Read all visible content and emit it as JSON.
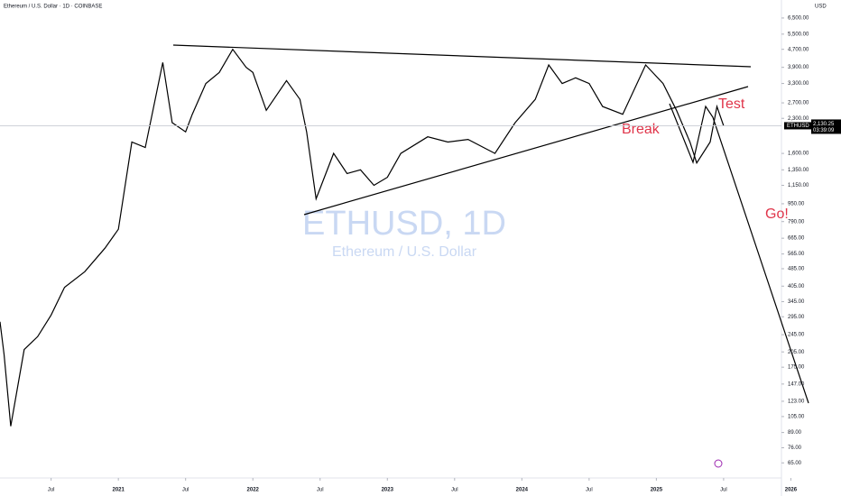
{
  "chart_data": {
    "type": "line",
    "header": "Ethereum / U.S. Dollar · 1D · COINBASE",
    "currency": "USD",
    "watermark": "ETHUSD, 1D",
    "watermark_subtitle": "Ethereum / U.S. Dollar",
    "symbol": "ETHUSD",
    "last_price": {
      "value": 2130.25,
      "label": "2,130.25"
    },
    "countdown": "03:39:09",
    "annotations": [
      "Break",
      "Test",
      "Go!"
    ],
    "log_scale": true,
    "color": "#000000",
    "x": [
      2020.12,
      2020.15,
      2020.2,
      2020.3,
      2020.4,
      2020.5,
      2020.6,
      2020.75,
      2020.9,
      2021.0,
      2021.1,
      2021.2,
      2021.33,
      2021.4,
      2021.5,
      2021.55,
      2021.65,
      2021.75,
      2021.85,
      2021.95,
      2022.0,
      2022.1,
      2022.25,
      2022.35,
      2022.4,
      2022.47,
      2022.6,
      2022.7,
      2022.8,
      2022.9,
      2023.0,
      2023.1,
      2023.3,
      2023.45,
      2023.6,
      2023.8,
      2023.95,
      2024.1,
      2024.2,
      2024.3,
      2024.4,
      2024.5,
      2024.6,
      2024.75,
      2024.92,
      2025.05,
      2025.15,
      2025.25,
      2025.3,
      2025.4,
      2025.45,
      2025.5
    ],
    "values": [
      280,
      200,
      95,
      210,
      240,
      300,
      400,
      470,
      600,
      730,
      1800,
      1700,
      4100,
      2200,
      2000,
      2400,
      3300,
      3700,
      4700,
      3900,
      3700,
      2500,
      3400,
      2800,
      2000,
      1000,
      1600,
      1300,
      1350,
      1150,
      1250,
      1600,
      1900,
      1800,
      1850,
      1600,
      2200,
      2800,
      4000,
      3300,
      3500,
      3300,
      2600,
      2400,
      4000,
      3300,
      2500,
      1800,
      1450,
      1800,
      2600,
      2130
    ],
    "xlim": [
      2020.12,
      2025.93
    ],
    "xticks": [
      {
        "value": 2020.5,
        "label": "Jul"
      },
      2021,
      {
        "value": 2021.5,
        "label": "Jul"
      },
      2022,
      {
        "value": 2022.5,
        "label": "Jul"
      },
      2023,
      {
        "value": 2023.5,
        "label": "Jul"
      },
      2024,
      {
        "value": 2024.5,
        "label": "Jul"
      },
      2025,
      {
        "value": 2025.5,
        "label": "Jul"
      },
      2026
    ],
    "ylim": [
      55.6,
      7830
    ],
    "yticks": [
      {
        "value": 6500,
        "label": "6,500.00"
      },
      {
        "value": 5500,
        "label": "5,500.00"
      },
      {
        "value": 4700,
        "label": "4,700.00"
      },
      {
        "value": 3900,
        "label": "3,900.00"
      },
      {
        "value": 3300,
        "label": "3,300.00"
      },
      {
        "value": 2700,
        "label": "2,700.00"
      },
      {
        "value": 2300,
        "label": "2,300.00"
      },
      {
        "value": 1600,
        "label": "1,600.00"
      },
      {
        "value": 1350,
        "label": "1,350.00"
      },
      {
        "value": 1150,
        "label": "1,150.00"
      },
      {
        "value": 950,
        "label": "950.00"
      },
      {
        "value": 790,
        "label": "790.00"
      },
      {
        "value": 665,
        "label": "665.00"
      },
      {
        "value": 565,
        "label": "565.00"
      },
      {
        "value": 485,
        "label": "485.00"
      },
      {
        "value": 405,
        "label": "405.00"
      },
      {
        "value": 345,
        "label": "345.00"
      },
      {
        "value": 295,
        "label": "295.00"
      },
      {
        "value": 245,
        "label": "245.00"
      },
      {
        "value": 205,
        "label": "205.00"
      },
      {
        "value": 175,
        "label": "175.00"
      },
      {
        "value": 147,
        "label": "147.00"
      },
      {
        "value": 123,
        "label": "123.00"
      },
      {
        "value": 105,
        "label": "105.00"
      },
      {
        "value": 89,
        "label": "89.00"
      },
      {
        "value": 76,
        "label": "76.00"
      },
      {
        "value": 65,
        "label": "65.00"
      }
    ]
  }
}
